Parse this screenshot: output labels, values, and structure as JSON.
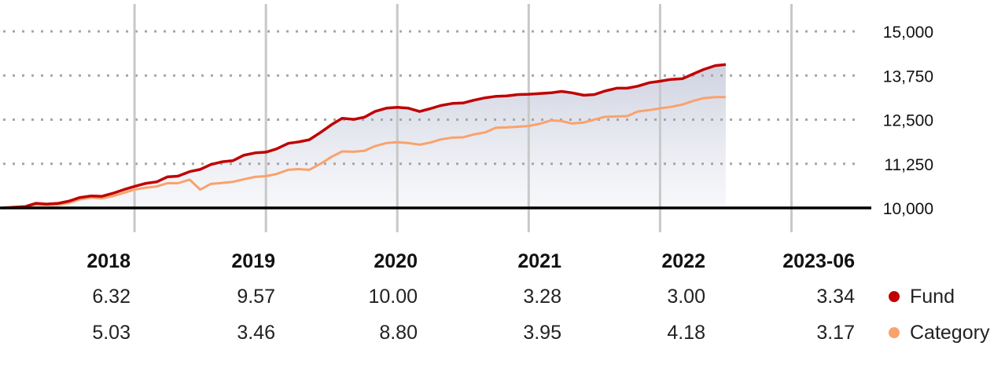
{
  "chart_data": {
    "type": "line",
    "y_ticks": [
      "15,000",
      "13,750",
      "12,500",
      "11,250",
      "10,000"
    ],
    "y_tick_values": [
      15000,
      13750,
      12500,
      11250,
      10000
    ],
    "ylim": [
      9700,
      15450
    ],
    "baseline": 10000,
    "grid": "dotted horizontal",
    "year_dividers": [
      2018,
      2019,
      2020,
      2021,
      2022,
      2023
    ],
    "xlim": [
      2017.0,
      2023.5
    ],
    "series": [
      {
        "name": "Fund",
        "color": "#c00000",
        "x": [
          2017.0,
          2017.17,
          2017.25,
          2017.33,
          2017.42,
          2017.5,
          2017.58,
          2017.67,
          2017.75,
          2017.83,
          2017.92,
          2018.0,
          2018.08,
          2018.17,
          2018.25,
          2018.33,
          2018.42,
          2018.5,
          2018.58,
          2018.67,
          2018.75,
          2018.83,
          2018.92,
          2019.0,
          2019.08,
          2019.17,
          2019.25,
          2019.33,
          2019.42,
          2019.5,
          2019.58,
          2019.67,
          2019.75,
          2019.83,
          2019.92,
          2020.0,
          2020.08,
          2020.17,
          2020.25,
          2020.33,
          2020.42,
          2020.5,
          2020.58,
          2020.67,
          2020.75,
          2020.83,
          2020.92,
          2021.0,
          2021.08,
          2021.17,
          2021.25,
          2021.33,
          2021.42,
          2021.5,
          2021.58,
          2021.67,
          2021.75,
          2021.83,
          2021.92,
          2022.0,
          2022.08,
          2022.17,
          2022.25,
          2022.33,
          2022.42,
          2022.5
        ],
        "values": [
          10000,
          10040,
          10130,
          10110,
          10130,
          10190,
          10290,
          10340,
          10330,
          10410,
          10520,
          10610,
          10690,
          10740,
          10880,
          10900,
          11030,
          11090,
          11230,
          11310,
          11340,
          11490,
          11560,
          11580,
          11670,
          11830,
          11870,
          11930,
          12150,
          12360,
          12540,
          12510,
          12570,
          12730,
          12830,
          12850,
          12830,
          12730,
          12810,
          12900,
          12960,
          12970,
          13050,
          13120,
          13160,
          13170,
          13210,
          13220,
          13240,
          13260,
          13300,
          13260,
          13190,
          13210,
          13310,
          13390,
          13390,
          13450,
          13550,
          13590,
          13640,
          13660,
          13790,
          13920,
          14030,
          14060
        ]
      },
      {
        "name": "Category",
        "color": "#f9a26c",
        "x": [
          2017.0,
          2017.17,
          2017.25,
          2017.33,
          2017.42,
          2017.5,
          2017.58,
          2017.67,
          2017.75,
          2017.83,
          2017.92,
          2018.0,
          2018.08,
          2018.17,
          2018.25,
          2018.33,
          2018.42,
          2018.5,
          2018.58,
          2018.67,
          2018.75,
          2018.83,
          2018.92,
          2019.0,
          2019.08,
          2019.17,
          2019.25,
          2019.33,
          2019.42,
          2019.5,
          2019.58,
          2019.67,
          2019.75,
          2019.83,
          2019.92,
          2020.0,
          2020.08,
          2020.17,
          2020.25,
          2020.33,
          2020.42,
          2020.5,
          2020.58,
          2020.67,
          2020.75,
          2020.83,
          2020.92,
          2021.0,
          2021.08,
          2021.17,
          2021.25,
          2021.33,
          2021.42,
          2021.5,
          2021.58,
          2021.67,
          2021.75,
          2021.83,
          2021.92,
          2022.0,
          2022.08,
          2022.17,
          2022.25,
          2022.33,
          2022.42,
          2022.5
        ],
        "values": [
          10000,
          10040,
          10090,
          10080,
          10090,
          10140,
          10240,
          10290,
          10270,
          10330,
          10430,
          10520,
          10570,
          10610,
          10700,
          10700,
          10800,
          10520,
          10680,
          10710,
          10740,
          10810,
          10880,
          10900,
          10960,
          11080,
          11100,
          11080,
          11260,
          11450,
          11600,
          11590,
          11620,
          11750,
          11840,
          11860,
          11840,
          11790,
          11850,
          11940,
          11990,
          12000,
          12080,
          12140,
          12270,
          12280,
          12300,
          12320,
          12380,
          12480,
          12460,
          12390,
          12420,
          12500,
          12580,
          12590,
          12600,
          12730,
          12770,
          12820,
          12860,
          12930,
          13030,
          13110,
          13140,
          13140
        ]
      }
    ],
    "annual_table": {
      "years": [
        "2018",
        "2019",
        "2020",
        "2021",
        "2022",
        "2023-06"
      ],
      "fund": [
        "6.32",
        "9.57",
        "10.00",
        "3.28",
        "3.00",
        "3.34"
      ],
      "category": [
        "5.03",
        "3.46",
        "8.80",
        "3.95",
        "4.18",
        "3.17"
      ]
    },
    "legend": {
      "fund_label": "Fund",
      "category_label": "Category",
      "placement": "bottom-right"
    },
    "area_fill": "#dde0eb"
  }
}
